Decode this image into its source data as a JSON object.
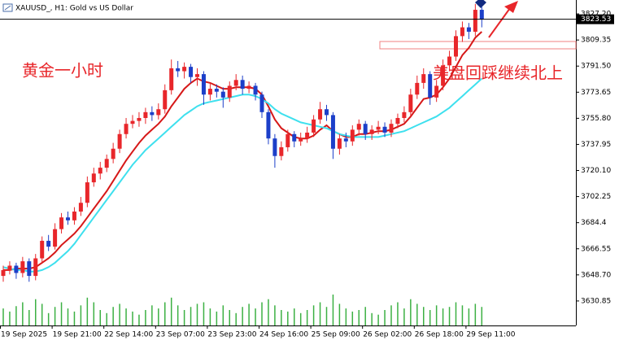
{
  "chart_data": {
    "type": "candlestick",
    "title": "XAUUSD_, H1: Gold vs US Dollar",
    "annotations": [
      "黄金一小时",
      "美盘回踩继续北上"
    ],
    "categories": [
      "19 Sep 2025",
      null,
      null,
      null,
      null,
      null,
      null,
      null,
      "19 Sep 21:00",
      null,
      null,
      null,
      null,
      null,
      null,
      null,
      "22 Sep 14:00",
      null,
      null,
      null,
      null,
      null,
      null,
      null,
      "23 Sep 07:00",
      null,
      null,
      null,
      null,
      null,
      null,
      null,
      "23 Sep 23:00",
      null,
      null,
      null,
      null,
      null,
      null,
      null,
      "24 Sep 16:00",
      null,
      null,
      null,
      null,
      null,
      null,
      null,
      "25 Sep 09:00",
      null,
      null,
      null,
      null,
      null,
      null,
      null,
      "26 Sep 02:00",
      null,
      null,
      null,
      null,
      null,
      null,
      null,
      "26 Sep 18:00",
      null,
      null,
      null,
      null,
      null,
      null,
      null,
      "29 Sep 11:00",
      null,
      null
    ],
    "open": [
      3648,
      3652,
      3655,
      3650,
      3658,
      3648,
      3660,
      3672,
      3668,
      3680,
      3688,
      3686,
      3692,
      3698,
      3712,
      3718,
      3722,
      3728,
      3735,
      3745,
      3752,
      3754,
      3756,
      3760,
      3758,
      3762,
      3775,
      3790,
      3788,
      3791,
      3784,
      3786,
      3772,
      3776,
      3774,
      3770,
      3778,
      3782,
      3776,
      3778,
      3772,
      3760,
      3742,
      3730,
      3736,
      3745,
      3740,
      3742,
      3746,
      3755,
      3762,
      3758,
      3735,
      3742,
      3740,
      3748,
      3752,
      3745,
      3748,
      3750,
      3746,
      3752,
      3756,
      3760,
      3772,
      3780,
      3786,
      3770,
      3778,
      3792,
      3798,
      3812,
      3818,
      3815,
      3830
    ],
    "high": [
      3655,
      3658,
      3657,
      3661,
      3660,
      3663,
      3675,
      3676,
      3684,
      3691,
      3692,
      3695,
      3702,
      3716,
      3722,
      3726,
      3731,
      3739,
      3748,
      3756,
      3758,
      3760,
      3763,
      3764,
      3766,
      3779,
      3796,
      3795,
      3794,
      3793,
      3790,
      3788,
      3780,
      3779,
      3777,
      3781,
      3786,
      3785,
      3781,
      3780,
      3774,
      3762,
      3745,
      3740,
      3748,
      3747,
      3746,
      3750,
      3758,
      3767,
      3765,
      3760,
      3745,
      3746,
      3751,
      3755,
      3754,
      3751,
      3754,
      3753,
      3755,
      3759,
      3764,
      3776,
      3785,
      3790,
      3788,
      3782,
      3796,
      3802,
      3816,
      3822,
      3821,
      3834,
      3832
    ],
    "low": [
      3644,
      3649,
      3646,
      3647,
      3644,
      3645,
      3657,
      3665,
      3666,
      3677,
      3683,
      3683,
      3689,
      3695,
      3709,
      3714,
      3719,
      3725,
      3732,
      3742,
      3749,
      3750,
      3752,
      3754,
      3755,
      3759,
      3772,
      3784,
      3783,
      3780,
      3778,
      3765,
      3768,
      3770,
      3763,
      3767,
      3775,
      3772,
      3773,
      3768,
      3756,
      3738,
      3722,
      3727,
      3733,
      3736,
      3737,
      3739,
      3743,
      3752,
      3754,
      3728,
      3731,
      3736,
      3737,
      3744,
      3741,
      3741,
      3745,
      3743,
      3743,
      3749,
      3753,
      3757,
      3769,
      3776,
      3765,
      3767,
      3775,
      3788,
      3795,
      3808,
      3810,
      3812,
      3818
    ],
    "close": [
      3652,
      3655,
      3650,
      3658,
      3648,
      3660,
      3672,
      3668,
      3680,
      3688,
      3686,
      3692,
      3698,
      3712,
      3718,
      3722,
      3728,
      3735,
      3745,
      3752,
      3754,
      3756,
      3760,
      3758,
      3762,
      3775,
      3790,
      3788,
      3791,
      3784,
      3786,
      3772,
      3776,
      3774,
      3770,
      3778,
      3782,
      3776,
      3778,
      3772,
      3760,
      3742,
      3730,
      3736,
      3745,
      3740,
      3742,
      3746,
      3755,
      3762,
      3758,
      3735,
      3742,
      3740,
      3748,
      3752,
      3745,
      3748,
      3750,
      3746,
      3752,
      3756,
      3760,
      3772,
      3780,
      3786,
      3770,
      3778,
      3792,
      3798,
      3812,
      3818,
      3815,
      3830,
      3823.53
    ],
    "up_color": "#e8262a",
    "down_color": "#1c3fc9",
    "moving_averages": [
      {
        "color": "#d61818",
        "values": [
          3652,
          3652,
          3653,
          3653,
          3653,
          3654,
          3657,
          3660,
          3664,
          3669,
          3673,
          3677,
          3682,
          3688,
          3694,
          3700,
          3706,
          3713,
          3720,
          3727,
          3733,
          3739,
          3744,
          3748,
          3752,
          3757,
          3764,
          3770,
          3776,
          3780,
          3783,
          3781,
          3780,
          3778,
          3776,
          3776,
          3777,
          3777,
          3777,
          3776,
          3772,
          3764,
          3755,
          3749,
          3746,
          3743,
          3742,
          3742,
          3744,
          3748,
          3751,
          3747,
          3745,
          3743,
          3743,
          3745,
          3745,
          3746,
          3747,
          3747,
          3748,
          3750,
          3752,
          3757,
          3763,
          3769,
          3770,
          3772,
          3777,
          3783,
          3791,
          3799,
          3804,
          3811,
          3815
        ]
      },
      {
        "color": "#3ee0ee",
        "values": [
          3654,
          3653,
          3652,
          3652,
          3651,
          3651,
          3652,
          3654,
          3657,
          3661,
          3665,
          3670,
          3676,
          3682,
          3688,
          3694,
          3700,
          3706,
          3712,
          3718,
          3724,
          3729,
          3734,
          3738,
          3742,
          3746,
          3750,
          3754,
          3758,
          3761,
          3764,
          3766,
          3767,
          3768,
          3769,
          3770,
          3771,
          3772,
          3772,
          3771,
          3769,
          3766,
          3762,
          3759,
          3757,
          3755,
          3753,
          3752,
          3751,
          3750,
          3749,
          3747,
          3745,
          3744,
          3743,
          3743,
          3743,
          3743,
          3743,
          3744,
          3745,
          3746,
          3747,
          3749,
          3751,
          3753,
          3755,
          3757,
          3760,
          3763,
          3767,
          3771,
          3775,
          3779,
          3783
        ]
      }
    ],
    "volume": {
      "color": "#3cb043",
      "values": [
        22,
        18,
        25,
        30,
        20,
        34,
        28,
        16,
        24,
        30,
        22,
        18,
        26,
        36,
        30,
        20,
        16,
        24,
        28,
        22,
        18,
        14,
        20,
        26,
        22,
        30,
        36,
        26,
        20,
        24,
        28,
        30,
        22,
        18,
        26,
        20,
        16,
        24,
        28,
        22,
        30,
        34,
        26,
        20,
        18,
        22,
        16,
        20,
        26,
        30,
        24,
        40,
        28,
        22,
        18,
        20,
        24,
        16,
        14,
        20,
        26,
        30,
        22,
        34,
        28,
        24,
        20,
        26,
        22,
        24,
        30,
        26,
        22,
        28,
        24
      ]
    },
    "ylim": [
      3614.1,
      3836.7
    ],
    "yticks": [
      {
        "value": 3827.2,
        "label": "3827.20"
      },
      3809.35,
      {
        "value": 3791.5,
        "label": "3791.50"
      },
      3773.65,
      {
        "value": 3755.8,
        "label": "3755.80"
      },
      3737.95,
      {
        "value": 3720.1,
        "label": "3720.10"
      },
      3702.25,
      3684.4,
      3666.55,
      {
        "value": 3648.7,
        "label": "3648.70"
      },
      3630.85
    ],
    "last_price": 3823.53
  }
}
